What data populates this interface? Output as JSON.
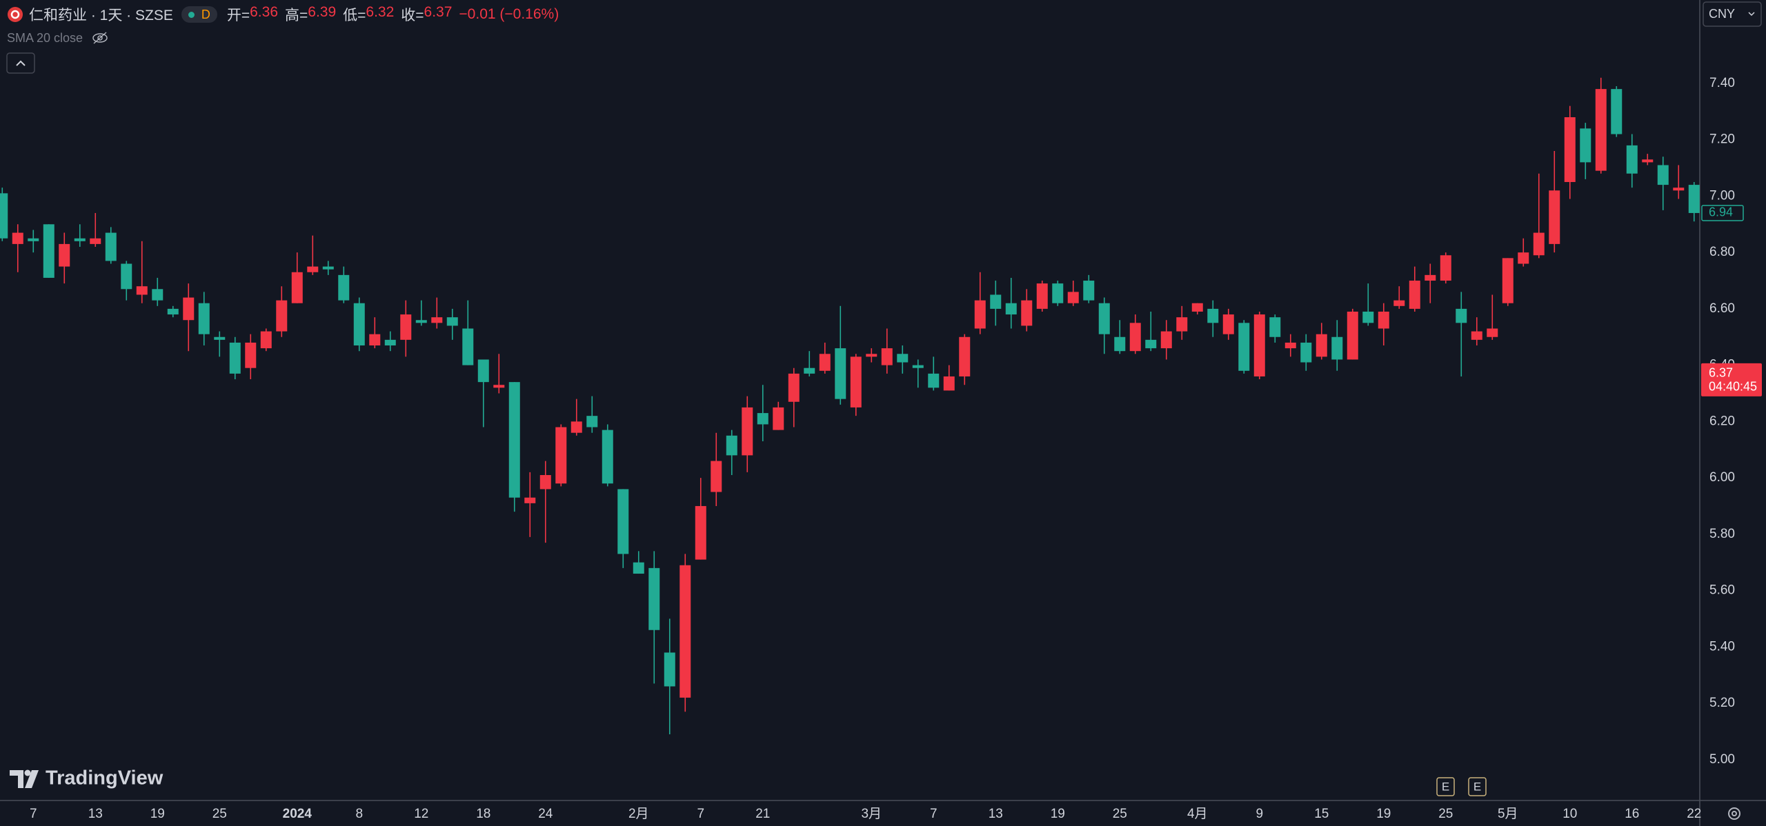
{
  "chart_data": {
    "type": "candlestick",
    "title": "仁和药业 · 1天 · SZSE",
    "interval_badge": "D",
    "legend": [
      {
        "label": "开=",
        "value": 6.36
      },
      {
        "label": "高=",
        "value": 6.39
      },
      {
        "label": "低=",
        "value": 6.32
      },
      {
        "label": "收=",
        "value": 6.37
      }
    ],
    "change": "−0.01 (−0.16%)",
    "indicator": "SMA 20 close",
    "currency": "CNY",
    "last_price": {
      "value": 6.37,
      "countdown": "04:40:45"
    },
    "last_visible_close": 6.94,
    "events": [
      "E",
      "E"
    ],
    "brand": "TradingView",
    "up_color": "#f23645",
    "down_color": "#22ab94",
    "grid": false,
    "ylim": [
      4.855,
      7.696
    ],
    "yticks": [
      {
        "value": 5,
        "label": "5.00"
      },
      {
        "value": 5.2,
        "label": "5.20"
      },
      {
        "value": 5.4,
        "label": "5.40"
      },
      {
        "value": 5.6,
        "label": "5.60"
      },
      {
        "value": 5.8,
        "label": "5.80"
      },
      {
        "value": 6,
        "label": "6.00"
      },
      {
        "value": 6.2,
        "label": "6.20"
      },
      {
        "value": 6.4,
        "label": "6.40"
      },
      {
        "value": 6.6,
        "label": "6.60"
      },
      {
        "value": 6.8,
        "label": "6.80"
      },
      {
        "value": 7,
        "label": "7.00"
      },
      {
        "value": 7.2,
        "label": "7.20"
      },
      {
        "value": 7.4,
        "label": "7.40"
      }
    ],
    "categories": [
      null,
      null,
      "7",
      null,
      null,
      null,
      "13",
      null,
      null,
      null,
      "19",
      null,
      null,
      null,
      "25",
      null,
      null,
      null,
      null,
      "2024",
      null,
      null,
      null,
      "8",
      null,
      null,
      null,
      "12",
      null,
      null,
      null,
      "18",
      null,
      null,
      null,
      "24",
      null,
      null,
      null,
      null,
      null,
      "2月",
      null,
      null,
      null,
      "7",
      null,
      null,
      null,
      "21",
      null,
      null,
      null,
      null,
      null,
      null,
      "3月",
      null,
      null,
      null,
      "7",
      null,
      null,
      null,
      "13",
      null,
      null,
      null,
      "19",
      null,
      null,
      null,
      "25",
      null,
      null,
      null,
      null,
      "4月",
      null,
      null,
      null,
      "9",
      null,
      null,
      null,
      "15",
      null,
      null,
      null,
      "19",
      null,
      null,
      null,
      "25",
      null,
      null,
      null,
      "5月",
      null,
      null,
      null,
      "10",
      null,
      null,
      null,
      "16",
      null,
      null,
      null,
      "22"
    ],
    "open": [
      7.01,
      6.83,
      6.85,
      6.9,
      6.75,
      6.85,
      6.83,
      6.87,
      6.76,
      6.65,
      6.67,
      6.6,
      6.56,
      6.62,
      6.5,
      6.48,
      6.39,
      6.46,
      6.52,
      6.62,
      6.73,
      6.75,
      6.72,
      6.62,
      6.47,
      6.49,
      6.49,
      6.56,
      6.55,
      6.57,
      6.53,
      6.42,
      6.32,
      6.34,
      5.91,
      5.96,
      5.98,
      6.16,
      6.22,
      6.17,
      5.96,
      5.7,
      5.68,
      5.38,
      5.22,
      5.71,
      5.95,
      6.15,
      6.08,
      6.23,
      6.17,
      6.27,
      6.39,
      6.38,
      6.46,
      6.25,
      6.43,
      6.4,
      6.44,
      6.4,
      6.37,
      6.31,
      6.36,
      6.53,
      6.65,
      6.62,
      6.54,
      6.6,
      6.69,
      6.62,
      6.7,
      6.62,
      6.5,
      6.45,
      6.49,
      6.46,
      6.52,
      6.59,
      6.6,
      6.51,
      6.55,
      6.36,
      6.57,
      6.46,
      6.48,
      6.43,
      6.5,
      6.42,
      6.59,
      6.53,
      6.61,
      6.6,
      6.7,
      6.7,
      6.6,
      6.49,
      6.5,
      6.62,
      6.76,
      6.79,
      6.83,
      7.05,
      7.24,
      7.09,
      7.38,
      7.18,
      7.12,
      7.11,
      7.02,
      7.04
    ],
    "high": [
      7.03,
      6.9,
      6.88,
      6.9,
      6.87,
      6.9,
      6.94,
      6.89,
      6.77,
      6.84,
      6.71,
      6.61,
      6.69,
      6.66,
      6.52,
      6.5,
      6.51,
      6.53,
      6.68,
      6.8,
      6.86,
      6.77,
      6.75,
      6.64,
      6.57,
      6.52,
      6.63,
      6.63,
      6.64,
      6.6,
      6.63,
      6.42,
      6.44,
      6.34,
      6.02,
      6.06,
      6.19,
      6.28,
      6.29,
      6.19,
      5.96,
      5.74,
      5.74,
      5.5,
      5.73,
      6.0,
      6.16,
      6.17,
      6.29,
      6.33,
      6.27,
      6.39,
      6.45,
      6.48,
      6.61,
      6.44,
      6.46,
      6.53,
      6.47,
      6.42,
      6.43,
      6.4,
      6.51,
      6.73,
      6.7,
      6.71,
      6.67,
      6.7,
      6.7,
      6.7,
      6.72,
      6.64,
      6.56,
      6.58,
      6.59,
      6.56,
      6.61,
      6.62,
      6.63,
      6.6,
      6.56,
      6.59,
      6.58,
      6.51,
      6.51,
      6.55,
      6.56,
      6.6,
      6.69,
      6.62,
      6.68,
      6.75,
      6.76,
      6.8,
      6.66,
      6.57,
      6.65,
      6.78,
      6.85,
      7.08,
      7.16,
      7.32,
      7.26,
      7.42,
      7.39,
      7.22,
      7.15,
      7.14,
      7.11,
      7.05
    ],
    "low": [
      6.84,
      6.73,
      6.8,
      6.71,
      6.69,
      6.82,
      6.82,
      6.76,
      6.63,
      6.62,
      6.61,
      6.57,
      6.45,
      6.47,
      6.43,
      6.35,
      6.35,
      6.45,
      6.5,
      6.62,
      6.72,
      6.72,
      6.62,
      6.45,
      6.46,
      6.45,
      6.43,
      6.54,
      6.53,
      6.49,
      6.4,
      6.18,
      6.3,
      5.88,
      5.79,
      5.77,
      5.97,
      6.15,
      6.16,
      5.97,
      5.68,
      5.66,
      5.27,
      5.09,
      5.17,
      5.71,
      5.9,
      6.01,
      6.02,
      6.13,
      6.17,
      6.18,
      6.36,
      6.37,
      6.26,
      6.22,
      6.41,
      6.37,
      6.37,
      6.32,
      6.31,
      6.31,
      6.33,
      6.51,
      6.54,
      6.53,
      6.52,
      6.59,
      6.61,
      6.61,
      6.62,
      6.44,
      6.44,
      6.44,
      6.45,
      6.42,
      6.49,
      6.58,
      6.5,
      6.49,
      6.37,
      6.35,
      6.48,
      6.43,
      6.38,
      6.42,
      6.38,
      6.42,
      6.54,
      6.47,
      6.6,
      6.59,
      6.62,
      6.69,
      6.36,
      6.47,
      6.49,
      6.61,
      6.75,
      6.78,
      6.8,
      6.99,
      7.06,
      7.08,
      7.21,
      7.03,
      7.11,
      6.95,
      6.99,
      6.91
    ],
    "close": [
      6.85,
      6.87,
      6.84,
      6.71,
      6.83,
      6.84,
      6.85,
      6.77,
      6.67,
      6.68,
      6.63,
      6.58,
      6.64,
      6.51,
      6.49,
      6.37,
      6.48,
      6.52,
      6.63,
      6.73,
      6.75,
      6.74,
      6.63,
      6.47,
      6.51,
      6.47,
      6.58,
      6.55,
      6.57,
      6.54,
      6.4,
      6.34,
      6.33,
      5.93,
      5.93,
      6.01,
      6.18,
      6.2,
      6.18,
      5.98,
      5.73,
      5.66,
      5.46,
      5.26,
      5.69,
      5.9,
      6.06,
      6.08,
      6.25,
      6.19,
      6.25,
      6.37,
      6.37,
      6.44,
      6.28,
      6.43,
      6.44,
      6.46,
      6.41,
      6.39,
      6.32,
      6.36,
      6.5,
      6.63,
      6.6,
      6.58,
      6.63,
      6.69,
      6.62,
      6.66,
      6.63,
      6.51,
      6.45,
      6.55,
      6.46,
      6.52,
      6.57,
      6.62,
      6.55,
      6.58,
      6.38,
      6.58,
      6.5,
      6.48,
      6.41,
      6.51,
      6.42,
      6.59,
      6.55,
      6.59,
      6.63,
      6.7,
      6.72,
      6.79,
      6.55,
      6.52,
      6.53,
      6.78,
      6.8,
      6.87,
      7.02,
      7.28,
      7.12,
      7.38,
      7.22,
      7.08,
      7.13,
      7.04,
      7.03,
      6.94
    ]
  }
}
